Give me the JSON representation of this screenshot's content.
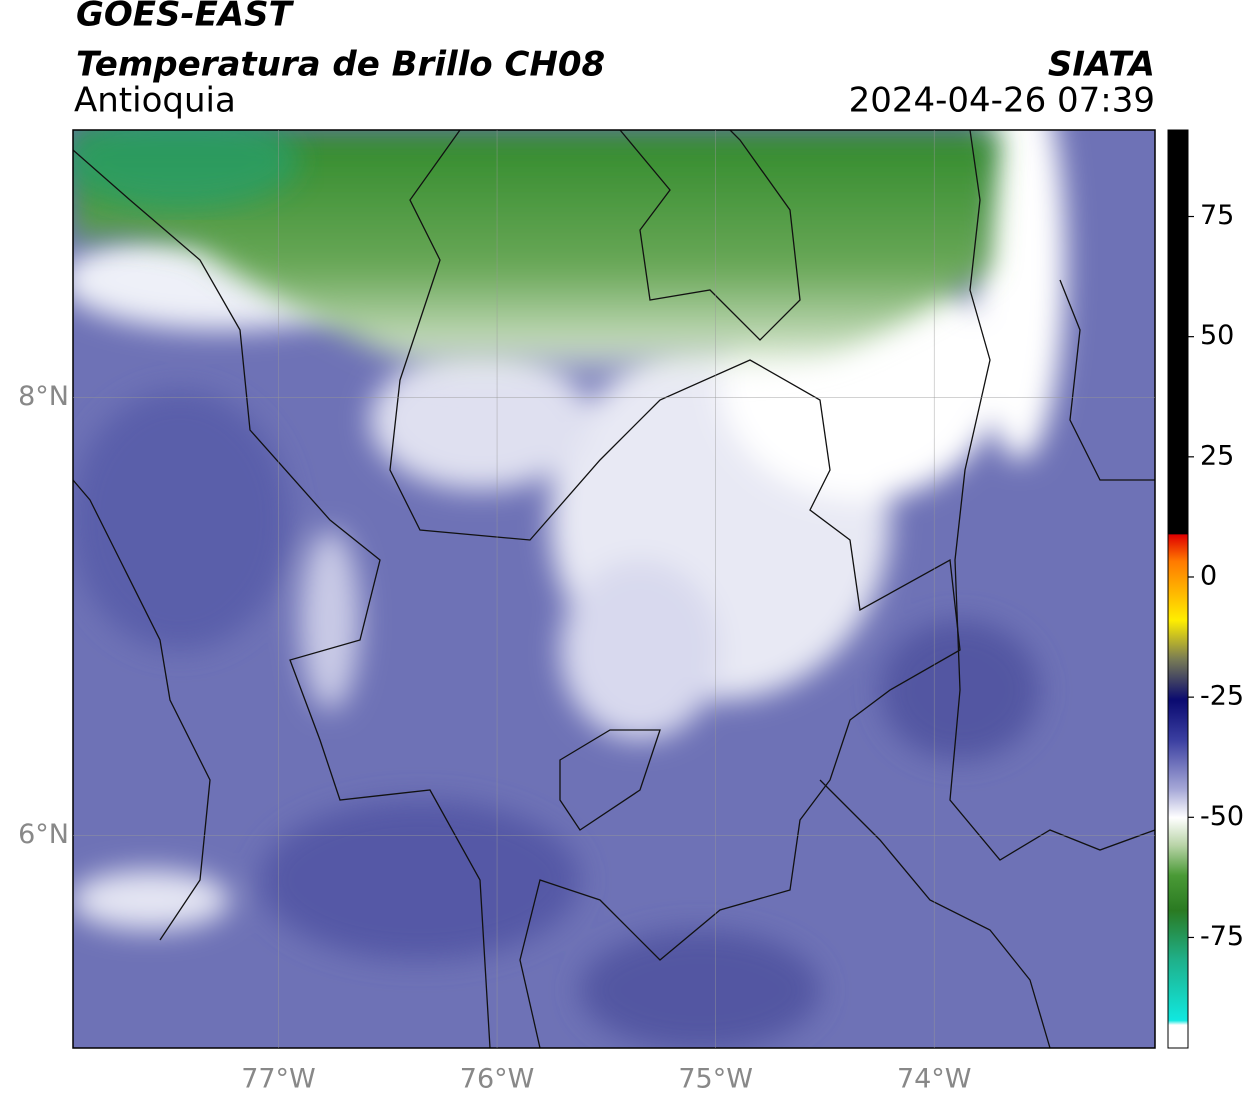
{
  "header": {
    "title": "GOES-EAST",
    "subtitle": "Temperatura de Brillo CH08",
    "region": "Antioquia",
    "source": "SIATA",
    "datetime": "2024-04-26 07:39"
  },
  "map": {
    "lon_range": [
      -77.94,
      -72.99
    ],
    "lat_range": [
      5.03,
      9.22
    ],
    "lon_ticks": [
      {
        "value": -77,
        "label": "77°W"
      },
      {
        "value": -76,
        "label": "76°W"
      },
      {
        "value": -75,
        "label": "75°W"
      },
      {
        "value": -74,
        "label": "74°W"
      }
    ],
    "lat_ticks": [
      {
        "value": 8,
        "label": "8°N"
      },
      {
        "value": 6,
        "label": "6°N"
      }
    ]
  },
  "colorbar": {
    "range": [
      -98,
      93
    ],
    "ticks": [
      75,
      50,
      25,
      0,
      -25,
      -50,
      -75
    ]
  }
}
